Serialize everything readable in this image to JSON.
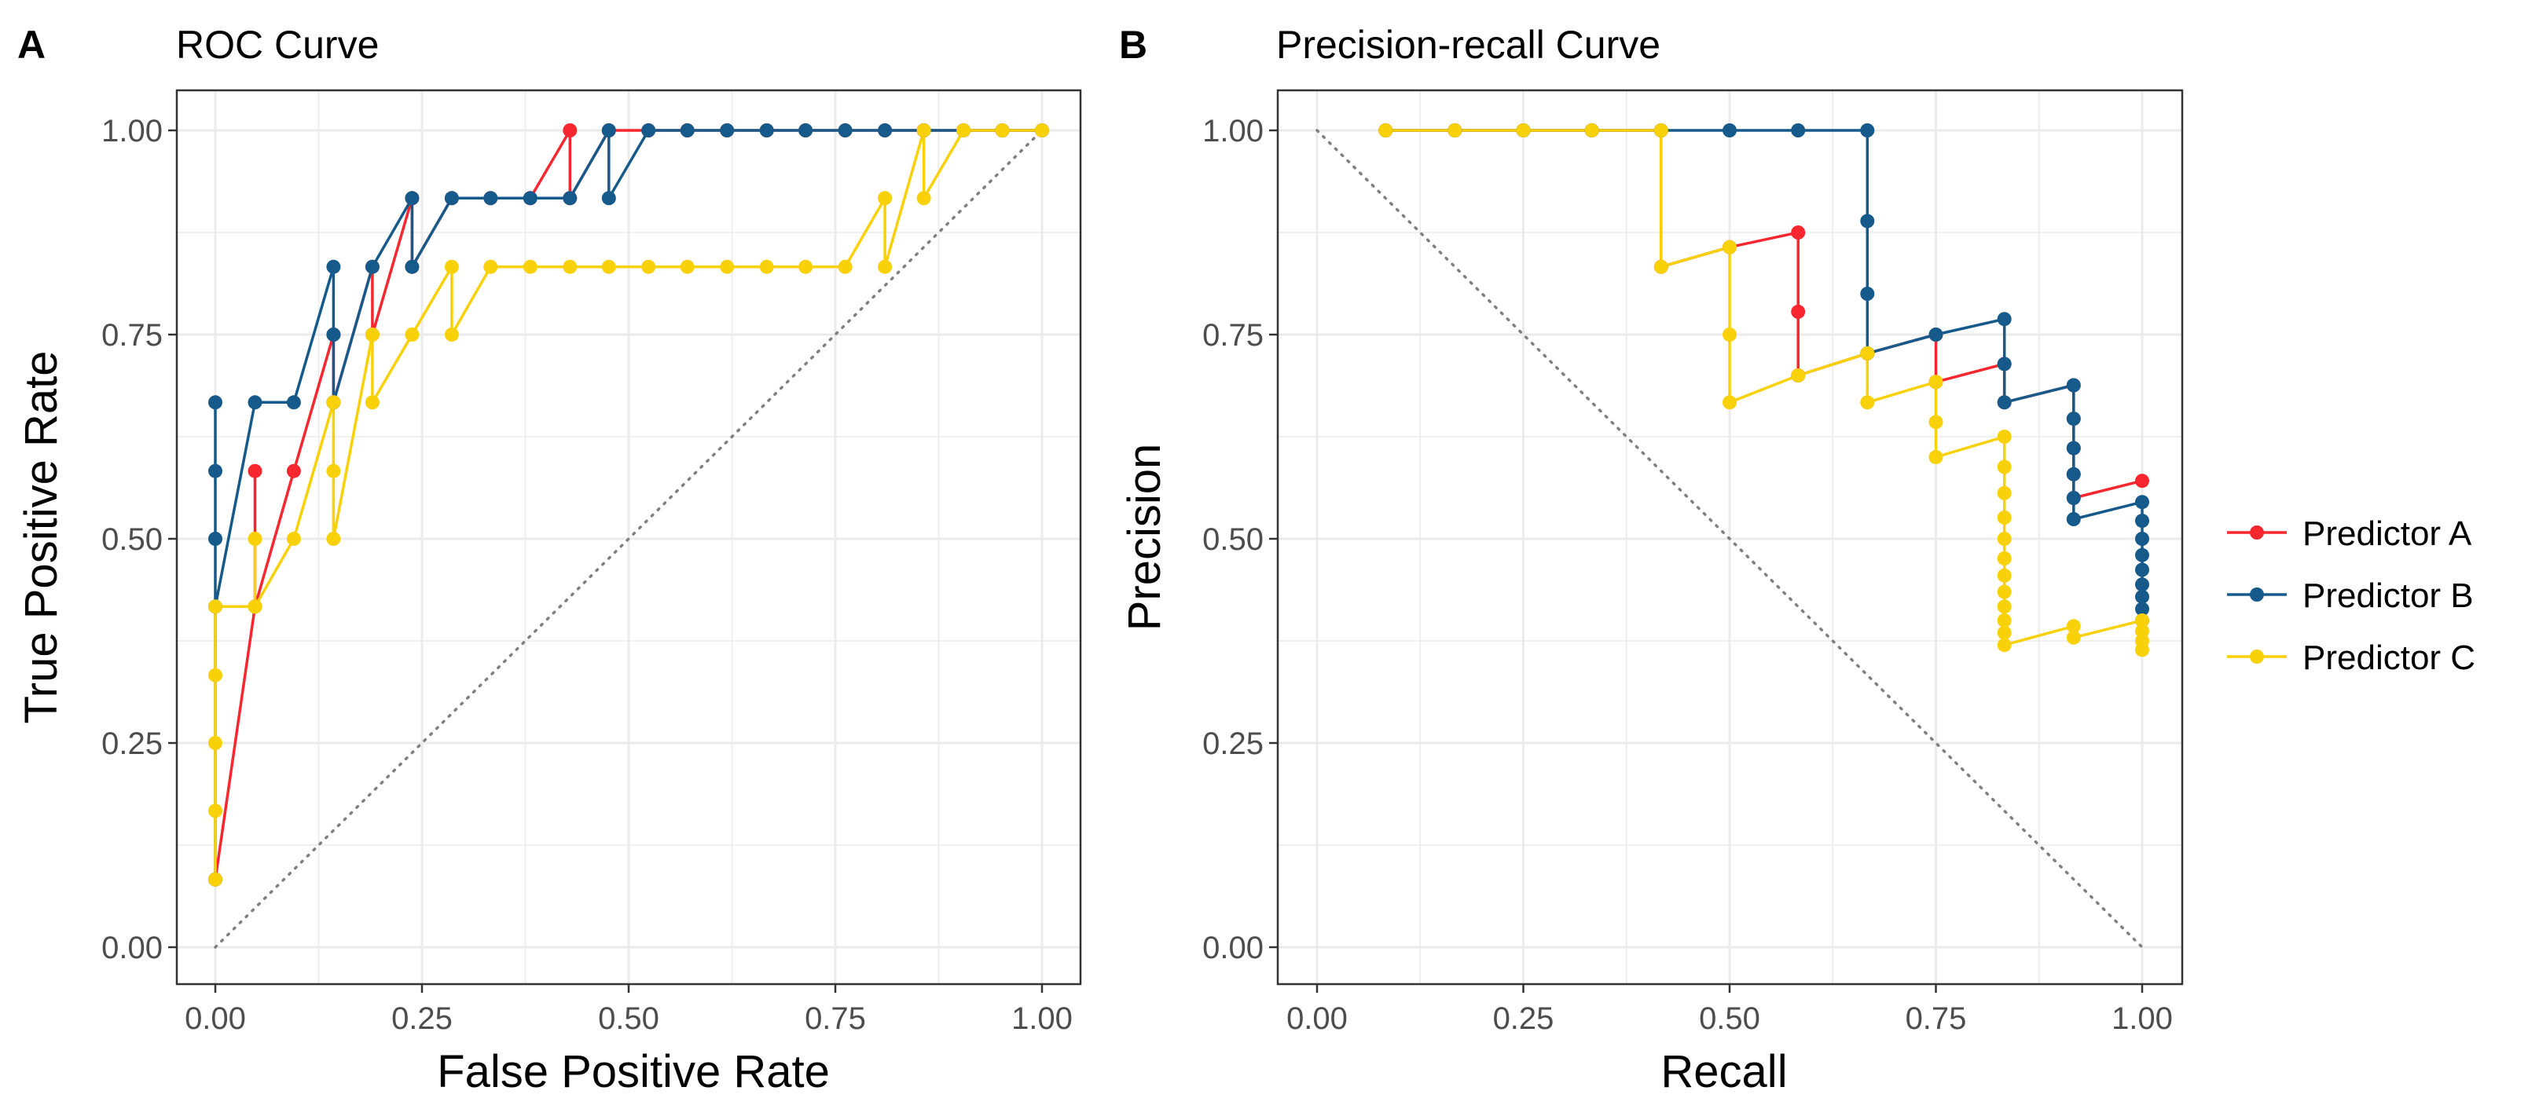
{
  "colors": {
    "Predictor A": "#f8272f",
    "Predictor B": "#155a8a",
    "Predictor C": "#f9d108",
    "grid": "#ebebeb",
    "border": "#333333",
    "reference": "#808080"
  },
  "legend": {
    "items": [
      "Predictor A",
      "Predictor B",
      "Predictor C"
    ],
    "position": "right"
  },
  "chart_data": [
    {
      "panel": "A",
      "type": "line",
      "title": "ROC Curve",
      "xlabel": "False Positive Rate",
      "ylabel": "True Positive Rate",
      "xlim": [
        0,
        1
      ],
      "ylim": [
        0,
        1
      ],
      "xticks": [
        0,
        0.25,
        0.5,
        0.75,
        1
      ],
      "yticks": [
        0,
        0.25,
        0.5,
        0.75,
        1
      ],
      "xtick_labels": [
        "0.00",
        "0.25",
        "0.50",
        "0.75",
        "1.00"
      ],
      "ytick_labels": [
        "0.00",
        "0.25",
        "0.50",
        "0.75",
        "1.00"
      ],
      "grid": true,
      "reference_line": "diagonal y = x (dotted)",
      "series": [
        {
          "name": "Predictor A",
          "points": [
            [
              0,
              0.083
            ],
            [
              0.048,
              0.417
            ],
            [
              0.048,
              0.583
            ],
            [
              0.048,
              0.417
            ],
            [
              0.095,
              0.583
            ],
            [
              0.143,
              0.75
            ],
            [
              0.143,
              0.667
            ],
            [
              0.19,
              0.833
            ],
            [
              0.19,
              0.75
            ],
            [
              0.238,
              0.917
            ],
            [
              0.238,
              0.833
            ],
            [
              0.286,
              0.917
            ],
            [
              0.333,
              0.917
            ],
            [
              0.381,
              0.917
            ],
            [
              0.429,
              1
            ],
            [
              0.429,
              0.917
            ],
            [
              0.476,
              1
            ],
            [
              0.524,
              1
            ],
            [
              0.571,
              1
            ],
            [
              0.619,
              1
            ],
            [
              0.667,
              1
            ],
            [
              0.714,
              1
            ],
            [
              0.762,
              1
            ],
            [
              0.81,
              1
            ],
            [
              0.857,
              1
            ],
            [
              0.905,
              1
            ],
            [
              0.952,
              1
            ],
            [
              1,
              1
            ]
          ]
        },
        {
          "name": "Predictor B",
          "points": [
            [
              0,
              0.083
            ],
            [
              0,
              0.667
            ],
            [
              0,
              0.583
            ],
            [
              0,
              0.5
            ],
            [
              0,
              0.417
            ],
            [
              0.048,
              0.667
            ],
            [
              0.095,
              0.667
            ],
            [
              0.143,
              0.833
            ],
            [
              0.143,
              0.75
            ],
            [
              0.143,
              0.667
            ],
            [
              0.19,
              0.833
            ],
            [
              0.238,
              0.917
            ],
            [
              0.238,
              0.833
            ],
            [
              0.286,
              0.917
            ],
            [
              0.333,
              0.917
            ],
            [
              0.381,
              0.917
            ],
            [
              0.429,
              0.917
            ],
            [
              0.476,
              1
            ],
            [
              0.476,
              0.917
            ],
            [
              0.524,
              1
            ],
            [
              0.571,
              1
            ],
            [
              0.619,
              1
            ],
            [
              0.667,
              1
            ],
            [
              0.714,
              1
            ],
            [
              0.762,
              1
            ],
            [
              0.81,
              1
            ],
            [
              0.857,
              1
            ],
            [
              0.905,
              1
            ],
            [
              0.952,
              1
            ],
            [
              1,
              1
            ]
          ]
        },
        {
          "name": "Predictor C",
          "points": [
            [
              0,
              0.083
            ],
            [
              0,
              0.167
            ],
            [
              0,
              0.25
            ],
            [
              0,
              0.333
            ],
            [
              0,
              0.417
            ],
            [
              0.048,
              0.417
            ],
            [
              0.048,
              0.5
            ],
            [
              0.048,
              0.417
            ],
            [
              0.095,
              0.5
            ],
            [
              0.143,
              0.667
            ],
            [
              0.143,
              0.583
            ],
            [
              0.143,
              0.5
            ],
            [
              0.19,
              0.75
            ],
            [
              0.19,
              0.667
            ],
            [
              0.238,
              0.75
            ],
            [
              0.286,
              0.833
            ],
            [
              0.286,
              0.75
            ],
            [
              0.333,
              0.833
            ],
            [
              0.381,
              0.833
            ],
            [
              0.429,
              0.833
            ],
            [
              0.476,
              0.833
            ],
            [
              0.524,
              0.833
            ],
            [
              0.571,
              0.833
            ],
            [
              0.619,
              0.833
            ],
            [
              0.667,
              0.833
            ],
            [
              0.714,
              0.833
            ],
            [
              0.762,
              0.833
            ],
            [
              0.81,
              0.917
            ],
            [
              0.81,
              0.833
            ],
            [
              0.857,
              1
            ],
            [
              0.857,
              0.917
            ],
            [
              0.905,
              1
            ],
            [
              0.952,
              1
            ],
            [
              1,
              1
            ]
          ]
        }
      ]
    },
    {
      "panel": "B",
      "type": "line",
      "title": "Precision-recall Curve",
      "xlabel": "Recall",
      "ylabel": "Precision",
      "xlim": [
        0,
        1
      ],
      "ylim": [
        0,
        1
      ],
      "xticks": [
        0,
        0.25,
        0.5,
        0.75,
        1
      ],
      "yticks": [
        0,
        0.25,
        0.5,
        0.75,
        1
      ],
      "xtick_labels": [
        "0.00",
        "0.25",
        "0.50",
        "0.75",
        "1.00"
      ],
      "ytick_labels": [
        "0.00",
        "0.25",
        "0.50",
        "0.75",
        "1.00"
      ],
      "grid": true,
      "reference_line": "diagonal y = 1 - x (dotted)",
      "series": [
        {
          "name": "Predictor A",
          "points": [
            [
              0.083,
              1
            ],
            [
              0.167,
              1
            ],
            [
              0.25,
              1
            ],
            [
              0.333,
              1
            ],
            [
              0.417,
              1
            ],
            [
              0.417,
              0.833
            ],
            [
              0.5,
              0.857
            ],
            [
              0.583,
              0.875
            ],
            [
              0.583,
              0.778
            ],
            [
              0.583,
              0.7
            ],
            [
              0.667,
              0.727
            ],
            [
              0.75,
              0.75
            ],
            [
              0.75,
              0.692
            ],
            [
              0.833,
              0.714
            ],
            [
              0.833,
              0.667
            ],
            [
              0.917,
              0.688
            ],
            [
              0.917,
              0.647
            ],
            [
              0.917,
              0.611
            ],
            [
              0.917,
              0.579
            ],
            [
              0.917,
              0.55
            ],
            [
              1,
              0.571
            ]
          ]
        },
        {
          "name": "Predictor B",
          "points": [
            [
              0.083,
              1
            ],
            [
              0.167,
              1
            ],
            [
              0.25,
              1
            ],
            [
              0.333,
              1
            ],
            [
              0.417,
              1
            ],
            [
              0.5,
              1
            ],
            [
              0.583,
              1
            ],
            [
              0.667,
              1
            ],
            [
              0.667,
              0.889
            ],
            [
              0.667,
              0.8
            ],
            [
              0.667,
              0.727
            ],
            [
              0.75,
              0.75
            ],
            [
              0.833,
              0.769
            ],
            [
              0.833,
              0.714
            ],
            [
              0.833,
              0.667
            ],
            [
              0.917,
              0.688
            ],
            [
              0.917,
              0.647
            ],
            [
              0.917,
              0.611
            ],
            [
              0.917,
              0.579
            ],
            [
              0.917,
              0.55
            ],
            [
              0.917,
              0.524
            ],
            [
              1,
              0.545
            ],
            [
              1,
              0.522
            ],
            [
              1,
              0.5
            ],
            [
              1,
              0.48
            ],
            [
              1,
              0.462
            ],
            [
              1,
              0.444
            ],
            [
              1,
              0.429
            ],
            [
              1,
              0.414
            ],
            [
              1,
              0.4
            ]
          ]
        },
        {
          "name": "Predictor C",
          "points": [
            [
              0.083,
              1
            ],
            [
              0.167,
              1
            ],
            [
              0.25,
              1
            ],
            [
              0.333,
              1
            ],
            [
              0.417,
              1
            ],
            [
              0.417,
              0.833
            ],
            [
              0.5,
              0.857
            ],
            [
              0.5,
              0.75
            ],
            [
              0.5,
              0.667
            ],
            [
              0.583,
              0.7
            ],
            [
              0.667,
              0.727
            ],
            [
              0.667,
              0.667
            ],
            [
              0.75,
              0.692
            ],
            [
              0.75,
              0.643
            ],
            [
              0.75,
              0.6
            ],
            [
              0.833,
              0.625
            ],
            [
              0.833,
              0.588
            ],
            [
              0.833,
              0.556
            ],
            [
              0.833,
              0.526
            ],
            [
              0.833,
              0.5
            ],
            [
              0.833,
              0.476
            ],
            [
              0.833,
              0.455
            ],
            [
              0.833,
              0.435
            ],
            [
              0.833,
              0.417
            ],
            [
              0.833,
              0.4
            ],
            [
              0.833,
              0.385
            ],
            [
              0.833,
              0.37
            ],
            [
              0.917,
              0.393
            ],
            [
              0.917,
              0.379
            ],
            [
              1,
              0.4
            ],
            [
              1,
              0.387
            ],
            [
              1,
              0.375
            ],
            [
              1,
              0.364
            ]
          ]
        }
      ]
    }
  ]
}
